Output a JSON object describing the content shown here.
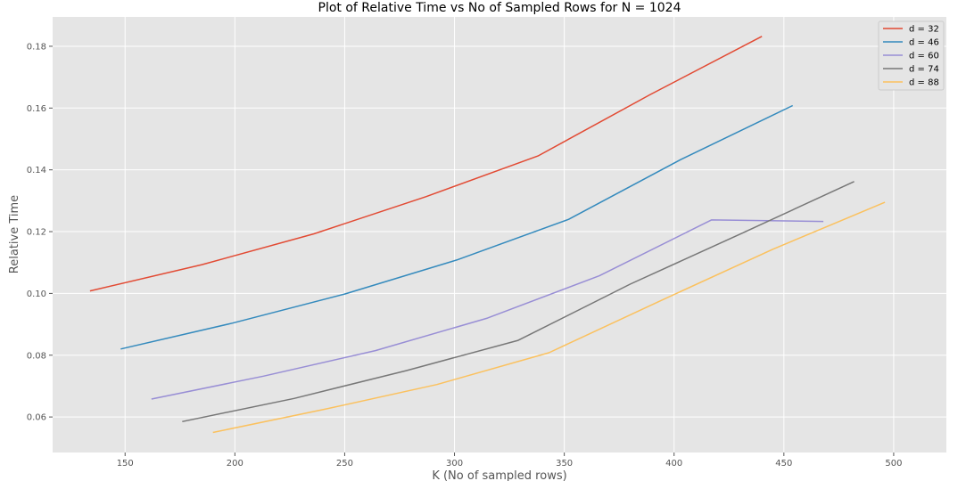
{
  "chart_data": {
    "type": "line",
    "title": "Plot of Relative Time vs No of Sampled Rows for N = 1024",
    "xlabel": "K (No of sampled rows)",
    "ylabel": "Relative Time",
    "xlim": [
      117,
      524
    ],
    "ylim": [
      0.0485,
      0.1895
    ],
    "xticks": [
      150,
      200,
      250,
      300,
      350,
      400,
      450,
      500
    ],
    "yticks": [
      0.06,
      0.08,
      0.1,
      0.12,
      0.14,
      0.16,
      0.18
    ],
    "xtick_labels": [
      "150",
      "200",
      "250",
      "300",
      "350",
      "400",
      "450",
      "500"
    ],
    "ytick_labels": [
      "0.06",
      "0.08",
      "0.10",
      "0.12",
      "0.14",
      "0.16",
      "0.18"
    ],
    "grid": true,
    "legend_position": "top-right",
    "background": "#e5e5e5",
    "series": [
      {
        "name": "d = 32",
        "color": "#e24a33",
        "x": [
          134,
          185,
          236,
          287,
          338,
          389,
          440
        ],
        "y": [
          0.1008,
          0.1093,
          0.1193,
          0.1313,
          0.1445,
          0.1643,
          0.1832
        ]
      },
      {
        "name": "d = 46",
        "color": "#348abd",
        "x": [
          148,
          199,
          250,
          301,
          352,
          403,
          454
        ],
        "y": [
          0.082,
          0.0904,
          0.0998,
          0.1108,
          0.124,
          0.1433,
          0.1608
        ]
      },
      {
        "name": "d = 60",
        "color": "#988ed5",
        "x": [
          162,
          213,
          264,
          315,
          366,
          417,
          468
        ],
        "y": [
          0.0658,
          0.0732,
          0.0815,
          0.092,
          0.1057,
          0.1238,
          0.1233
        ]
      },
      {
        "name": "d = 74",
        "color": "#777777",
        "x": [
          176,
          227,
          278,
          329,
          380,
          431,
          482
        ],
        "y": [
          0.0585,
          0.066,
          0.075,
          0.0848,
          0.103,
          0.1195,
          0.1362
        ]
      },
      {
        "name": "d = 88",
        "color": "#fbc15e",
        "x": [
          190,
          241,
          292,
          343,
          394,
          445,
          496
        ],
        "y": [
          0.055,
          0.0625,
          0.0705,
          0.0808,
          0.0977,
          0.1143,
          0.1295
        ]
      }
    ]
  }
}
